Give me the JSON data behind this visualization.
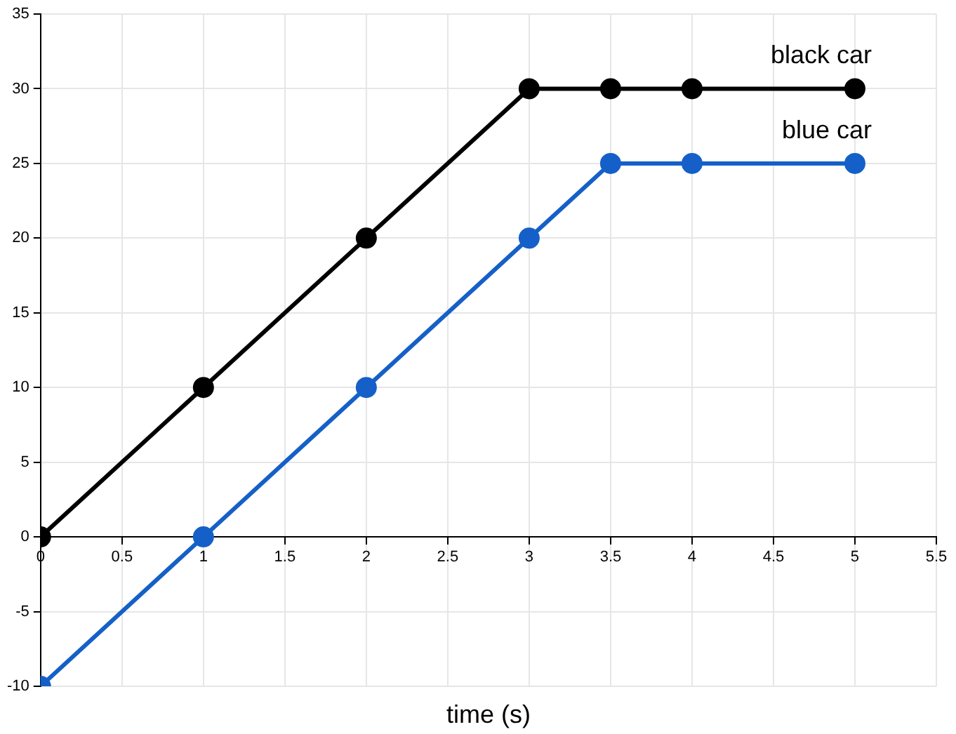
{
  "chart_data": {
    "type": "line",
    "xlabel": "time (s)",
    "x": [
      0,
      1,
      2,
      3,
      3.5,
      4,
      5
    ],
    "series": [
      {
        "name": "black car",
        "color": "#000000",
        "values": [
          0,
          10,
          20,
          30,
          30,
          30,
          30
        ]
      },
      {
        "name": "blue car",
        "color": "#1560c8",
        "values": [
          -10,
          0,
          10,
          20,
          25,
          25,
          25
        ]
      }
    ],
    "xlim": [
      0,
      5.5
    ],
    "xticks": [
      0,
      0.5,
      1,
      1.5,
      2,
      2.5,
      3,
      3.5,
      4,
      4.5,
      5,
      5.5
    ],
    "ylim": [
      -10,
      35
    ],
    "yticks": [
      -10,
      -5,
      0,
      5,
      10,
      15,
      20,
      25,
      30,
      35
    ],
    "grid": true,
    "legend": false,
    "marker": "circle",
    "line_style": "solid"
  }
}
